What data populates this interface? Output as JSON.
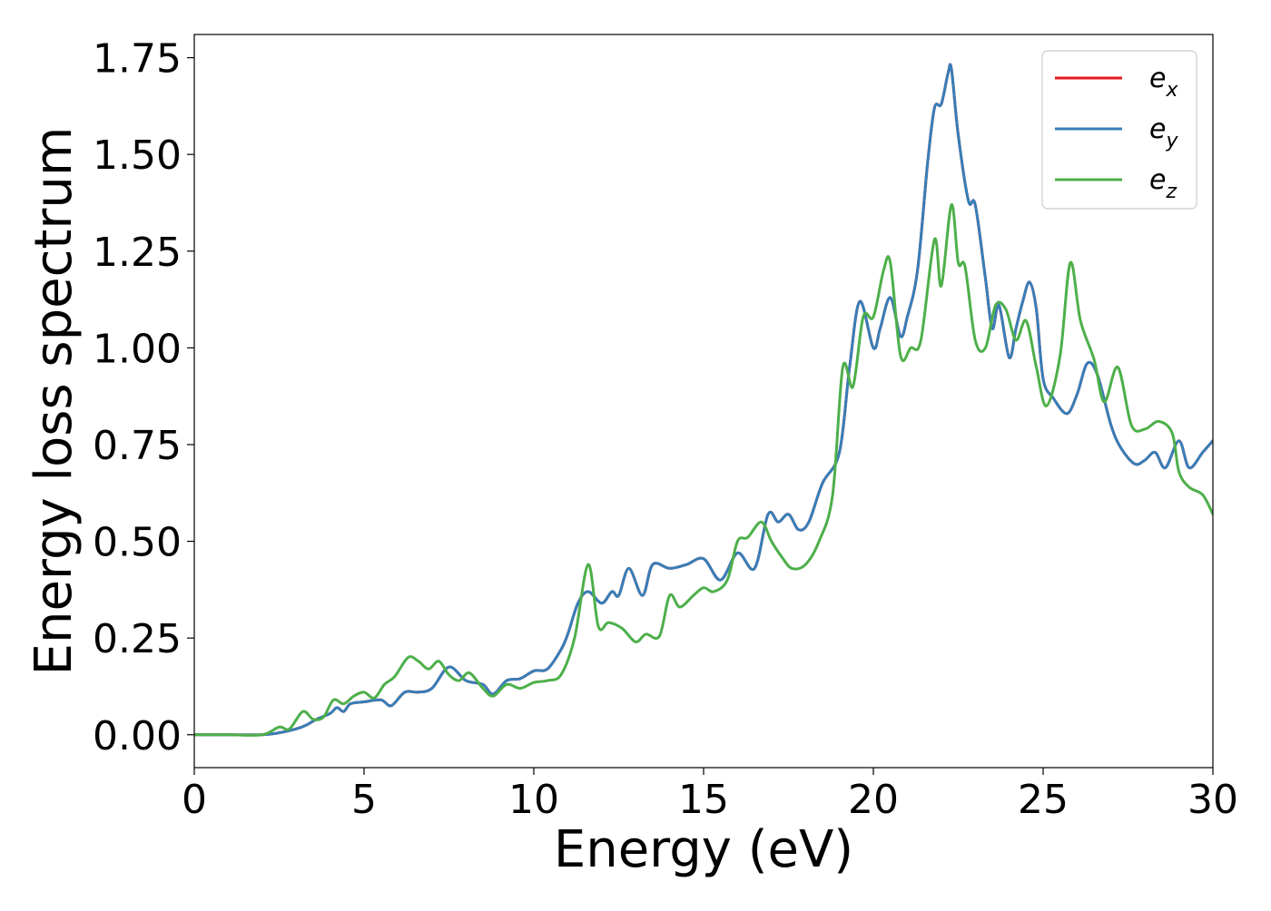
{
  "chart_data": {
    "type": "line",
    "title": "",
    "xlabel": "Energy (eV)",
    "ylabel": "Energy loss spectrum",
    "xlim": [
      0,
      30
    ],
    "ylim": [
      -0.085,
      1.81
    ],
    "xticks": [
      0,
      5,
      10,
      15,
      20,
      25,
      30
    ],
    "xtick_labels": [
      "0",
      "5",
      "10",
      "15",
      "20",
      "25",
      "30"
    ],
    "yticks": [
      0,
      0.25,
      0.5,
      0.75,
      1.0,
      1.25,
      1.5,
      1.75
    ],
    "ytick_labels": [
      "0.00",
      "0.25",
      "0.50",
      "0.75",
      "1.00",
      "1.25",
      "1.50",
      "1.75"
    ],
    "grid": false,
    "legend": {
      "position": "top-right",
      "entries": [
        {
          "base": "e",
          "sub": "x",
          "color": "#e41a1c"
        },
        {
          "base": "e",
          "sub": "y",
          "color": "#377eb8"
        },
        {
          "base": "e",
          "sub": "z",
          "color": "#4daf4a"
        }
      ]
    },
    "series": [
      {
        "name": "e_x",
        "color": "#e41a1c",
        "x": [
          0,
          1,
          2,
          2.5,
          3,
          3.3,
          3.6,
          4,
          4.2,
          4.4,
          4.6,
          5,
          5.5,
          5.8,
          6.2,
          6.6,
          7,
          7.5,
          8,
          8.5,
          8.8,
          9.2,
          9.6,
          10,
          10.4,
          10.8,
          11,
          11.3,
          11.6,
          12,
          12.3,
          12.5,
          12.8,
          13.2,
          13.5,
          14,
          14.5,
          15,
          15.5,
          16,
          16.5,
          16.9,
          17.2,
          17.5,
          17.8,
          18.1,
          18.5,
          19,
          19.3,
          19.6,
          20,
          20.2,
          20.5,
          20.8,
          21,
          21.3,
          21.6,
          21.8,
          22,
          22.2,
          22.3,
          22.5,
          22.8,
          23,
          23.3,
          23.5,
          23.7,
          24,
          24.2,
          24.4,
          24.6,
          24.8,
          25,
          25.3,
          25.7,
          26,
          26.3,
          26.6,
          27,
          27.3,
          27.7,
          28,
          28.3,
          28.6,
          29,
          29.3,
          29.7,
          30
        ],
        "y": [
          0,
          0,
          0,
          0.005,
          0.015,
          0.025,
          0.04,
          0.055,
          0.07,
          0.06,
          0.08,
          0.085,
          0.09,
          0.075,
          0.11,
          0.11,
          0.12,
          0.175,
          0.14,
          0.13,
          0.105,
          0.14,
          0.145,
          0.165,
          0.17,
          0.22,
          0.26,
          0.34,
          0.37,
          0.34,
          0.37,
          0.36,
          0.43,
          0.36,
          0.44,
          0.43,
          0.44,
          0.455,
          0.4,
          0.47,
          0.43,
          0.57,
          0.55,
          0.57,
          0.53,
          0.55,
          0.65,
          0.73,
          0.95,
          1.12,
          1.0,
          1.05,
          1.13,
          1.03,
          1.08,
          1.2,
          1.48,
          1.62,
          1.63,
          1.71,
          1.72,
          1.55,
          1.38,
          1.37,
          1.18,
          1.05,
          1.11,
          0.975,
          1.05,
          1.12,
          1.17,
          1.1,
          0.92,
          0.87,
          0.83,
          0.88,
          0.96,
          0.93,
          0.8,
          0.74,
          0.7,
          0.71,
          0.73,
          0.69,
          0.76,
          0.69,
          0.73,
          0.76
        ]
      },
      {
        "name": "e_y",
        "color": "#377eb8",
        "x": [
          0,
          1,
          2,
          2.5,
          3,
          3.3,
          3.6,
          4,
          4.2,
          4.4,
          4.6,
          5,
          5.5,
          5.8,
          6.2,
          6.6,
          7,
          7.5,
          8,
          8.5,
          8.8,
          9.2,
          9.6,
          10,
          10.4,
          10.8,
          11,
          11.3,
          11.6,
          12,
          12.3,
          12.5,
          12.8,
          13.2,
          13.5,
          14,
          14.5,
          15,
          15.5,
          16,
          16.5,
          16.9,
          17.2,
          17.5,
          17.8,
          18.1,
          18.5,
          19,
          19.3,
          19.6,
          20,
          20.2,
          20.5,
          20.8,
          21,
          21.3,
          21.6,
          21.8,
          22,
          22.2,
          22.3,
          22.5,
          22.8,
          23,
          23.3,
          23.5,
          23.7,
          24,
          24.2,
          24.4,
          24.6,
          24.8,
          25,
          25.3,
          25.7,
          26,
          26.3,
          26.6,
          27,
          27.3,
          27.7,
          28,
          28.3,
          28.6,
          29,
          29.3,
          29.7,
          30
        ],
        "y": [
          0,
          0,
          0,
          0.005,
          0.015,
          0.025,
          0.04,
          0.055,
          0.07,
          0.06,
          0.08,
          0.085,
          0.09,
          0.075,
          0.11,
          0.11,
          0.12,
          0.175,
          0.14,
          0.13,
          0.105,
          0.14,
          0.145,
          0.165,
          0.17,
          0.22,
          0.26,
          0.34,
          0.37,
          0.34,
          0.37,
          0.36,
          0.43,
          0.36,
          0.44,
          0.43,
          0.44,
          0.455,
          0.4,
          0.47,
          0.43,
          0.57,
          0.55,
          0.57,
          0.53,
          0.55,
          0.65,
          0.73,
          0.95,
          1.12,
          1.0,
          1.05,
          1.13,
          1.03,
          1.08,
          1.2,
          1.48,
          1.62,
          1.63,
          1.71,
          1.72,
          1.55,
          1.38,
          1.37,
          1.18,
          1.05,
          1.11,
          0.975,
          1.05,
          1.12,
          1.17,
          1.1,
          0.92,
          0.87,
          0.83,
          0.88,
          0.96,
          0.93,
          0.8,
          0.74,
          0.7,
          0.71,
          0.73,
          0.69,
          0.76,
          0.69,
          0.73,
          0.76
        ]
      },
      {
        "name": "e_z",
        "color": "#4daf4a",
        "x": [
          0,
          1,
          2,
          2.5,
          2.8,
          3.2,
          3.5,
          3.8,
          4.1,
          4.4,
          4.7,
          5,
          5.3,
          5.6,
          5.9,
          6.3,
          6.6,
          6.9,
          7.2,
          7.5,
          7.8,
          8.1,
          8.5,
          8.8,
          9.2,
          9.6,
          10,
          10.4,
          10.8,
          11.2,
          11.6,
          11.9,
          12.2,
          12.6,
          13,
          13.3,
          13.7,
          14,
          14.3,
          14.7,
          15,
          15.3,
          15.7,
          16,
          16.3,
          16.7,
          17,
          17.3,
          17.6,
          18,
          18.4,
          18.8,
          19.1,
          19.4,
          19.7,
          20,
          20.3,
          20.5,
          20.8,
          21.1,
          21.4,
          21.8,
          22,
          22.3,
          22.5,
          22.7,
          23,
          23.3,
          23.6,
          23.9,
          24.2,
          24.5,
          24.8,
          25.1,
          25.5,
          25.8,
          26.1,
          26.5,
          26.8,
          27.2,
          27.6,
          28,
          28.4,
          28.8,
          29,
          29.3,
          29.7,
          30
        ],
        "y": [
          0,
          0,
          0,
          0.02,
          0.015,
          0.06,
          0.04,
          0.045,
          0.09,
          0.08,
          0.1,
          0.11,
          0.095,
          0.13,
          0.15,
          0.2,
          0.19,
          0.17,
          0.19,
          0.155,
          0.14,
          0.16,
          0.12,
          0.1,
          0.13,
          0.12,
          0.135,
          0.14,
          0.155,
          0.25,
          0.44,
          0.28,
          0.29,
          0.275,
          0.24,
          0.26,
          0.255,
          0.36,
          0.33,
          0.36,
          0.38,
          0.37,
          0.4,
          0.5,
          0.51,
          0.55,
          0.5,
          0.46,
          0.43,
          0.44,
          0.5,
          0.62,
          0.95,
          0.9,
          1.08,
          1.08,
          1.2,
          1.22,
          0.98,
          1.0,
          1.02,
          1.28,
          1.16,
          1.37,
          1.22,
          1.21,
          1.02,
          1.0,
          1.11,
          1.1,
          1.02,
          1.07,
          0.95,
          0.85,
          0.98,
          1.22,
          1.07,
          0.97,
          0.86,
          0.95,
          0.8,
          0.79,
          0.81,
          0.78,
          0.68,
          0.64,
          0.62,
          0.57
        ]
      }
    ]
  }
}
